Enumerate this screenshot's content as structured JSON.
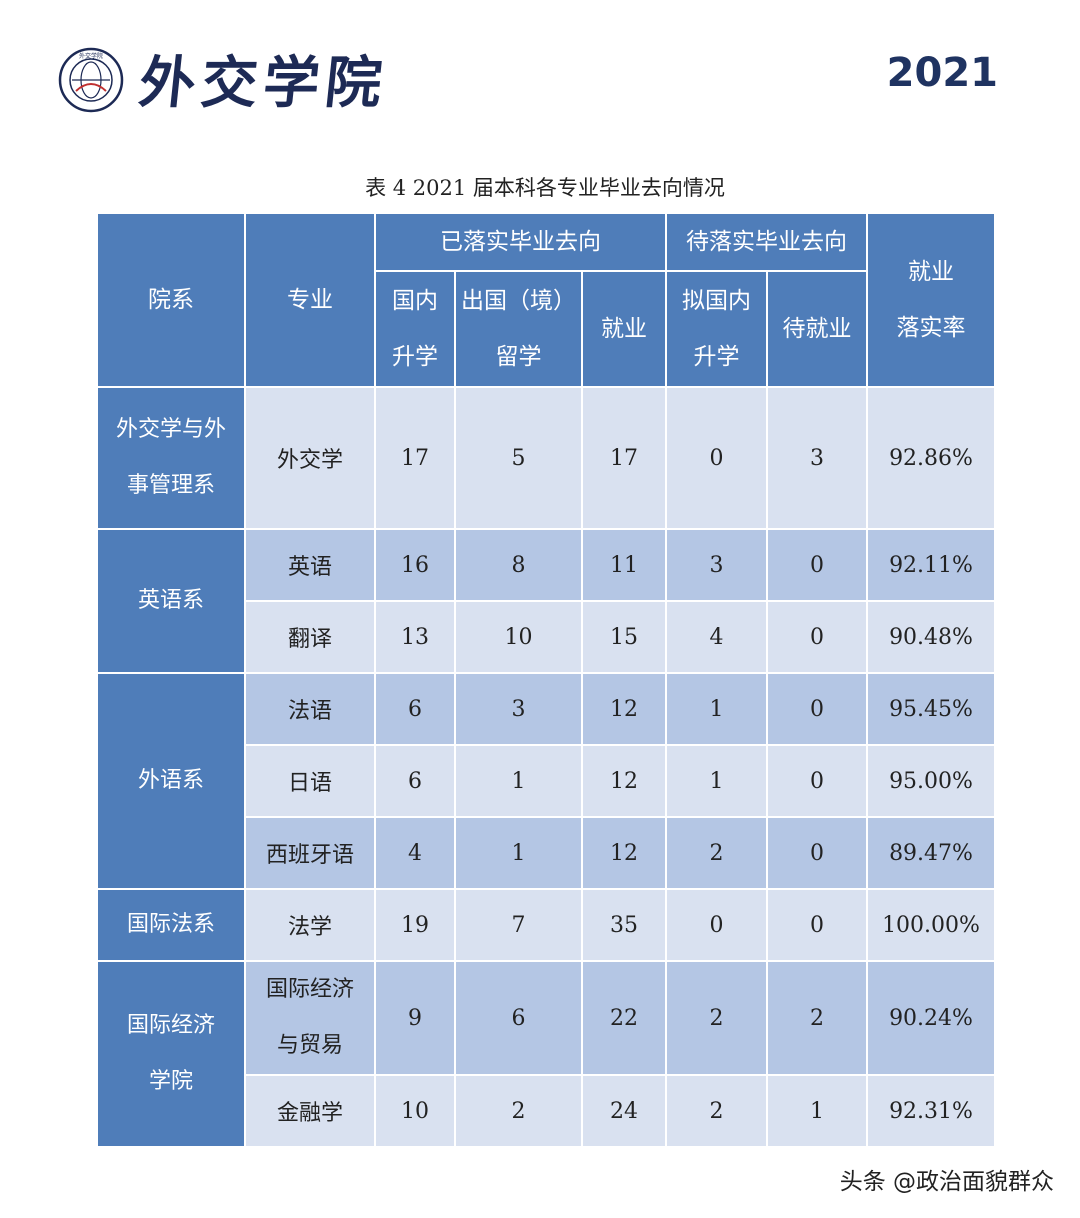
{
  "header": {
    "logo_text": "外交学院",
    "logo_seal_text": "外交学院",
    "year": "2021"
  },
  "caption": "表 4   2021 届本科各专业毕业去向情况",
  "table": {
    "h_dept": "院系",
    "h_major": "专业",
    "h_group1": "已落实毕业去向",
    "h_group2": "待落实毕业去向",
    "h_rate": [
      "就业",
      "落实率"
    ],
    "h_domestic": [
      "国内",
      "升学"
    ],
    "h_abroad": [
      "出国（境）",
      "留学"
    ],
    "h_employ": "就业",
    "h_plan": [
      "拟国内",
      "升学"
    ],
    "h_wait": "待就业",
    "depts": [
      [
        "外交学与外",
        "事管理系"
      ],
      [
        "英语系"
      ],
      [
        "外语系"
      ],
      [
        "国际法系"
      ],
      [
        "国际经济",
        "学院"
      ]
    ],
    "rows": [
      {
        "major": [
          "外交学"
        ],
        "v": [
          "17",
          "5",
          "17",
          "0",
          "3",
          "92.86%"
        ]
      },
      {
        "major": [
          "英语"
        ],
        "v": [
          "16",
          "8",
          "11",
          "3",
          "0",
          "92.11%"
        ]
      },
      {
        "major": [
          "翻译"
        ],
        "v": [
          "13",
          "10",
          "15",
          "4",
          "0",
          "90.48%"
        ]
      },
      {
        "major": [
          "法语"
        ],
        "v": [
          "6",
          "3",
          "12",
          "1",
          "0",
          "95.45%"
        ]
      },
      {
        "major": [
          "日语"
        ],
        "v": [
          "6",
          "1",
          "12",
          "1",
          "0",
          "95.00%"
        ]
      },
      {
        "major": [
          "西班牙语"
        ],
        "v": [
          "4",
          "1",
          "12",
          "2",
          "0",
          "89.47%"
        ]
      },
      {
        "major": [
          "法学"
        ],
        "v": [
          "19",
          "7",
          "35",
          "0",
          "0",
          "100.00%"
        ]
      },
      {
        "major": [
          "国际经济",
          "与贸易"
        ],
        "v": [
          "9",
          "6",
          "22",
          "2",
          "2",
          "90.24%"
        ]
      },
      {
        "major": [
          "金融学"
        ],
        "v": [
          "10",
          "2",
          "24",
          "2",
          "1",
          "92.31%"
        ]
      }
    ]
  },
  "watermark": "头条 @政治面貌群众",
  "colors": {
    "header_bg": "#4f7db9",
    "row_light": "#d9e1f0",
    "row_dark": "#b4c6e4",
    "title": "#1f3361"
  }
}
